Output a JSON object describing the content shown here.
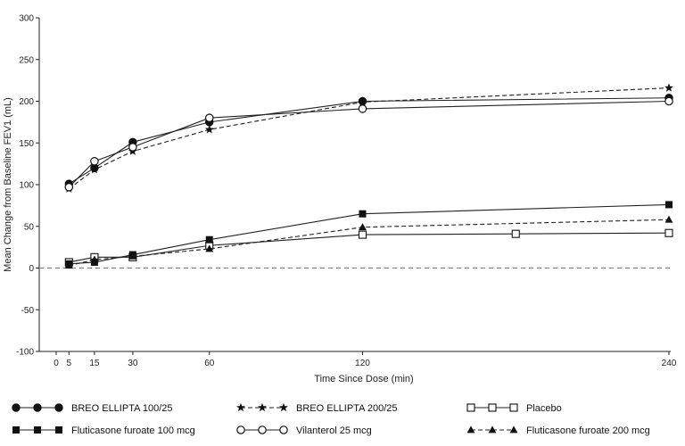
{
  "chart_data": {
    "type": "line",
    "title": "",
    "xlabel": "Time Since Dose (min)",
    "ylabel": "Mean Change from Baseline FEV1 (mL)",
    "xlim": [
      0,
      240
    ],
    "ylim": [
      -100,
      300
    ],
    "x_ticks": [
      0,
      5,
      15,
      30,
      60,
      120,
      240
    ],
    "y_ticks": [
      -100,
      -50,
      0,
      50,
      100,
      150,
      200,
      250,
      300
    ],
    "grid": false,
    "reference_line": 0,
    "legend_placement": "bottom",
    "series": [
      {
        "name": "BREO ELLIPTA 100/25",
        "marker": "filled-circle",
        "line": "solid",
        "x": [
          5,
          15,
          30,
          60,
          120,
          240
        ],
        "values": [
          101,
          120,
          151,
          175,
          200,
          204
        ]
      },
      {
        "name": "BREO ELLIPTA 200/25",
        "marker": "star",
        "line": "dashed",
        "x": [
          5,
          15,
          30,
          60,
          120,
          240
        ],
        "values": [
          95,
          118,
          140,
          166,
          199,
          216
        ]
      },
      {
        "name": "Placebo",
        "marker": "open-square",
        "line": "solid",
        "x": [
          5,
          15,
          30,
          60,
          120,
          180,
          240
        ],
        "values": [
          7,
          13,
          13,
          27,
          40,
          41,
          42
        ]
      },
      {
        "name": "Fluticasone furoate 100 mcg",
        "marker": "filled-square",
        "line": "solid",
        "x": [
          5,
          15,
          30,
          60,
          120,
          240
        ],
        "values": [
          5,
          7,
          16,
          34,
          65,
          76
        ]
      },
      {
        "name": "Vilanterol 25 mcg",
        "marker": "open-circle",
        "line": "solid",
        "x": [
          5,
          15,
          30,
          60,
          120,
          240
        ],
        "values": [
          97,
          128,
          145,
          180,
          191,
          200
        ]
      },
      {
        "name": "Fluticasone furoate 200 mcg",
        "marker": "filled-triangle",
        "line": "dashed",
        "x": [
          5,
          15,
          30,
          60,
          120,
          240
        ],
        "values": [
          3,
          10,
          14,
          23,
          49,
          58
        ]
      }
    ]
  }
}
